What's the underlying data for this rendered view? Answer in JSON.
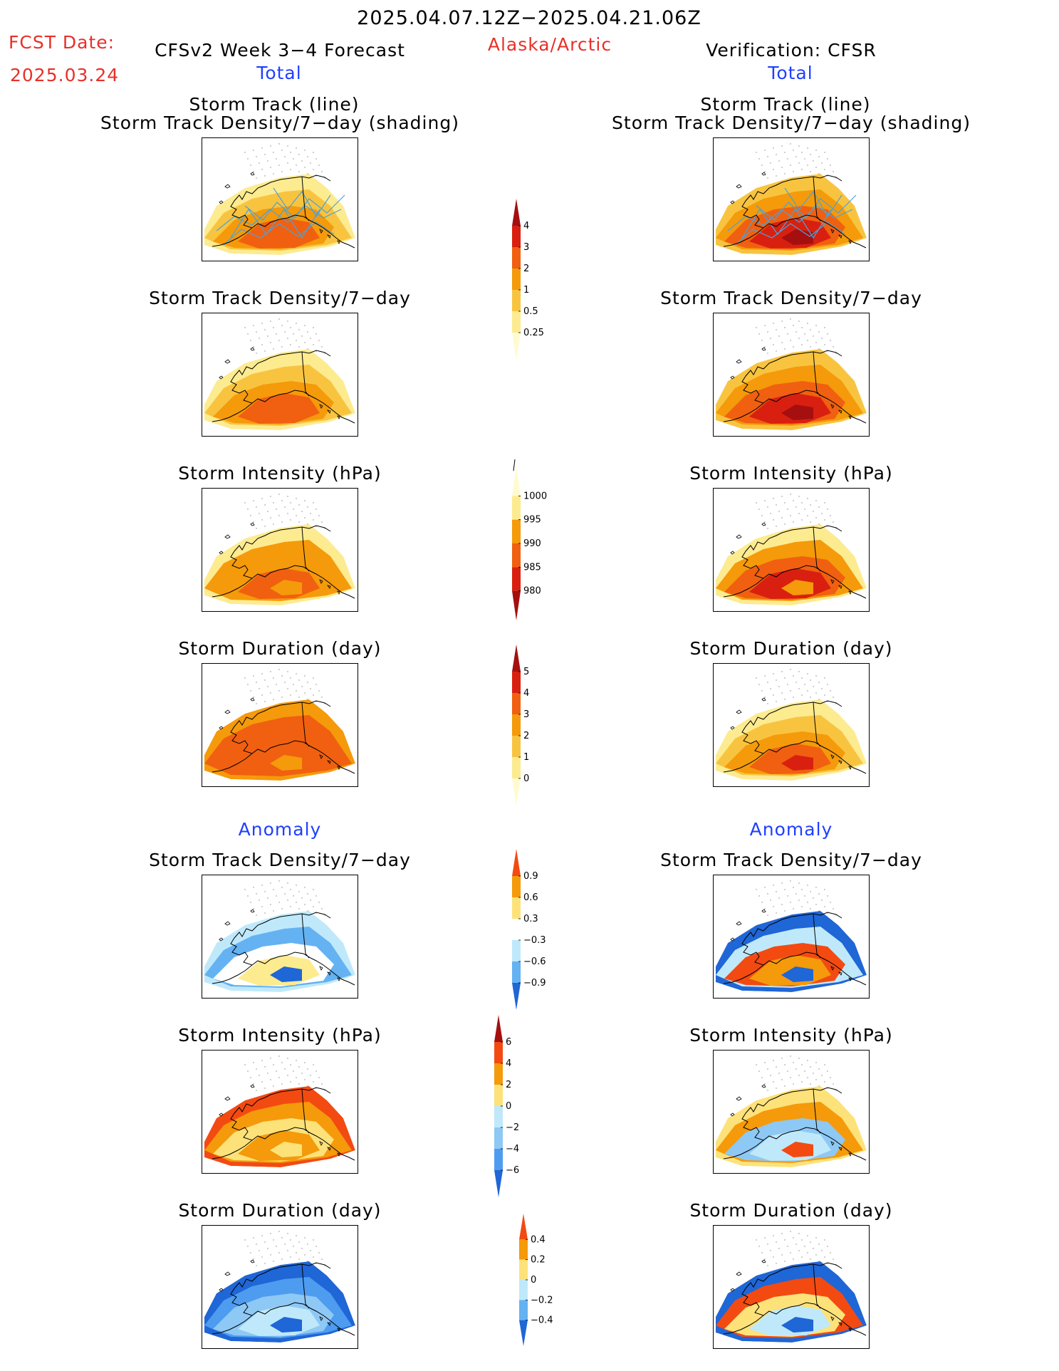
{
  "header": {
    "date_range": "2025.04.07.12Z−2025.04.21.06Z",
    "fcst_label": "FCST Date:",
    "fcst_date": "2025.03.24",
    "model_title": "CFSv2 Week 3−4 Forecast",
    "region": "Alaska/Arctic",
    "verification": "Verification: CFSR",
    "left_total": "Total",
    "right_total": "Total"
  },
  "titles": {
    "track_line": "Storm Track (line)",
    "track_shading": "Storm Track Density/7−day (shading)",
    "density": "Storm Track Density/7−day",
    "intensity": "Storm Intensity (hPa)",
    "duration": "Storm Duration (day)",
    "anomaly_left": "Anomaly",
    "anomaly_right": "Anomaly"
  },
  "colorbars": {
    "density": {
      "labels": [
        "4",
        "3",
        "2",
        "1",
        "0.5",
        "0.25"
      ],
      "colors": [
        "#a50f0f",
        "#d92010",
        "#f06010",
        "#f59a0a",
        "#f8c440",
        "#fdeb90",
        "#fffbd0"
      ]
    },
    "intensity": {
      "labels": [
        "1000",
        "995",
        "990",
        "985",
        "980"
      ],
      "colors": [
        "#fffbd0",
        "#fdeb90",
        "#f59a0a",
        "#f06010",
        "#d92010",
        "#a50f0f"
      ]
    },
    "duration": {
      "labels": [
        "5",
        "4",
        "3",
        "2",
        "1",
        "0"
      ],
      "colors": [
        "#a50f0f",
        "#d92010",
        "#f06010",
        "#f59a0a",
        "#f8c440",
        "#fdeb90",
        "#fffbd0"
      ]
    },
    "anom_density": {
      "labels": [
        "0.9",
        "0.6",
        "0.3",
        "−0.3",
        "−0.6",
        "−0.9"
      ],
      "colors": [
        "#f34a12",
        "#f59a0a",
        "#fde27a",
        "#ffffff",
        "#bfe9fb",
        "#64b2f2",
        "#1f66d6"
      ]
    },
    "anom_intensity": {
      "labels": [
        "6",
        "4",
        "2",
        "0",
        "−2",
        "−4",
        "−6"
      ],
      "colors": [
        "#a50f0f",
        "#f34a12",
        "#f59a0a",
        "#fde27a",
        "#bfe9fb",
        "#8ec8f5",
        "#4e9cf0",
        "#1f66d6"
      ]
    },
    "anom_duration": {
      "labels": [
        "0.4",
        "0.2",
        "0",
        "−0.2",
        "−0.4"
      ],
      "colors": [
        "#f34a12",
        "#f59a0a",
        "#fde27a",
        "#bfe9fb",
        "#64b2f2",
        "#1f66d6"
      ]
    }
  },
  "palette": {
    "tracks": "#4aa3d8",
    "coast": "#000000",
    "grid": "#888888"
  },
  "maps": [
    {
      "colors": [
        "#fdeb90",
        "#f8c440",
        "#f59a0a",
        "#f06010",
        "#f06010"
      ]
    },
    {
      "colors": [
        "#f8c440",
        "#f59a0a",
        "#f06010",
        "#d92010",
        "#a50f0f"
      ]
    },
    {
      "colors": [
        "#fdeb90",
        "#f8c440",
        "#f59a0a",
        "#f06010",
        "#f06010"
      ]
    },
    {
      "colors": [
        "#f8c440",
        "#f59a0a",
        "#f06010",
        "#d92010",
        "#a50f0f"
      ]
    },
    {
      "colors": [
        "#fdeb90",
        "#f59a0a",
        "#f59a0a",
        "#f06010",
        "#f59a0a"
      ]
    },
    {
      "colors": [
        "#fdeb90",
        "#f59a0a",
        "#f06010",
        "#d92010",
        "#f59a0a"
      ]
    },
    {
      "colors": [
        "#f59a0a",
        "#f06010",
        "#f06010",
        "#f06010",
        "#f59a0a"
      ]
    },
    {
      "colors": [
        "#fdeb90",
        "#f8c440",
        "#f59a0a",
        "#f06010",
        "#d92010"
      ]
    },
    {
      "colors": [
        "#bfe9fb",
        "#64b2f2",
        "#ffffff",
        "#fdeb90",
        "#1f66d6"
      ]
    },
    {
      "colors": [
        "#1f66d6",
        "#bfe9fb",
        "#f34a12",
        "#f59a0a",
        "#1f66d6"
      ]
    },
    {
      "colors": [
        "#f34a12",
        "#f59a0a",
        "#fde27a",
        "#f59a0a",
        "#fde27a"
      ]
    },
    {
      "colors": [
        "#fde27a",
        "#f59a0a",
        "#8ec8f5",
        "#bfe9fb",
        "#f34a12"
      ]
    },
    {
      "colors": [
        "#1f66d6",
        "#4e9cf0",
        "#8ec8f5",
        "#bfe9fb",
        "#1f66d6"
      ]
    },
    {
      "colors": [
        "#1f66d6",
        "#f34a12",
        "#fde27a",
        "#bfe9fb",
        "#1f66d6"
      ]
    }
  ]
}
